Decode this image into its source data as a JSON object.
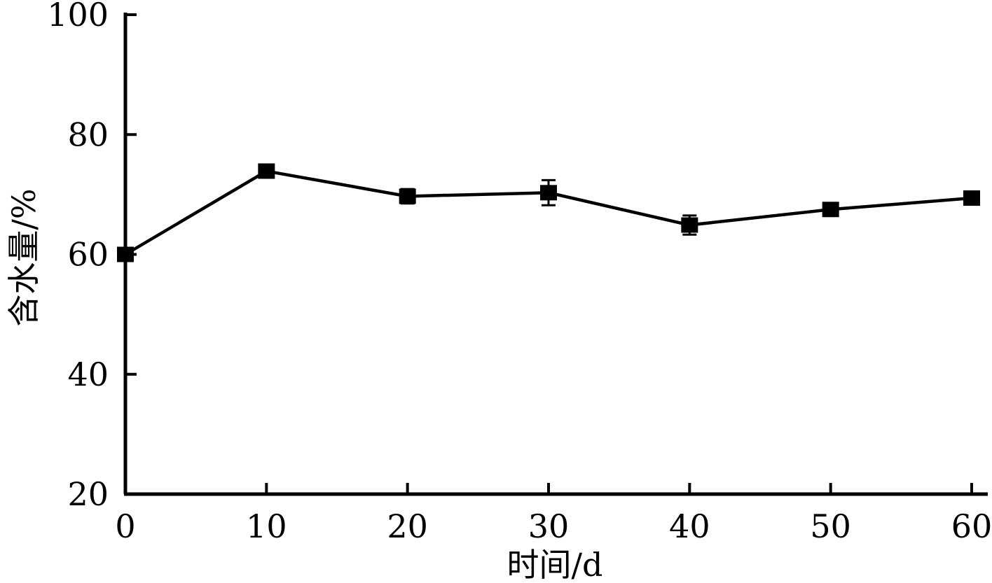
{
  "chart_data": {
    "type": "line",
    "title": "",
    "xlabel": "时间/d",
    "ylabel": "含水量/%",
    "xlim": [
      0,
      60
    ],
    "ylim": [
      20,
      100
    ],
    "x_ticks": [
      0,
      10,
      20,
      30,
      40,
      50,
      60
    ],
    "y_ticks": [
      20,
      40,
      60,
      80,
      100
    ],
    "grid": false,
    "series": [
      {
        "x": [
          0,
          10,
          20,
          30,
          40,
          50,
          60
        ],
        "values": [
          60.0,
          73.9,
          69.7,
          70.3,
          64.9,
          67.5,
          69.4
        ],
        "errors": [
          0.6,
          0.5,
          1.2,
          2.1,
          1.6,
          0.7,
          0.6
        ],
        "marker": "square",
        "color": "#000000"
      }
    ]
  }
}
